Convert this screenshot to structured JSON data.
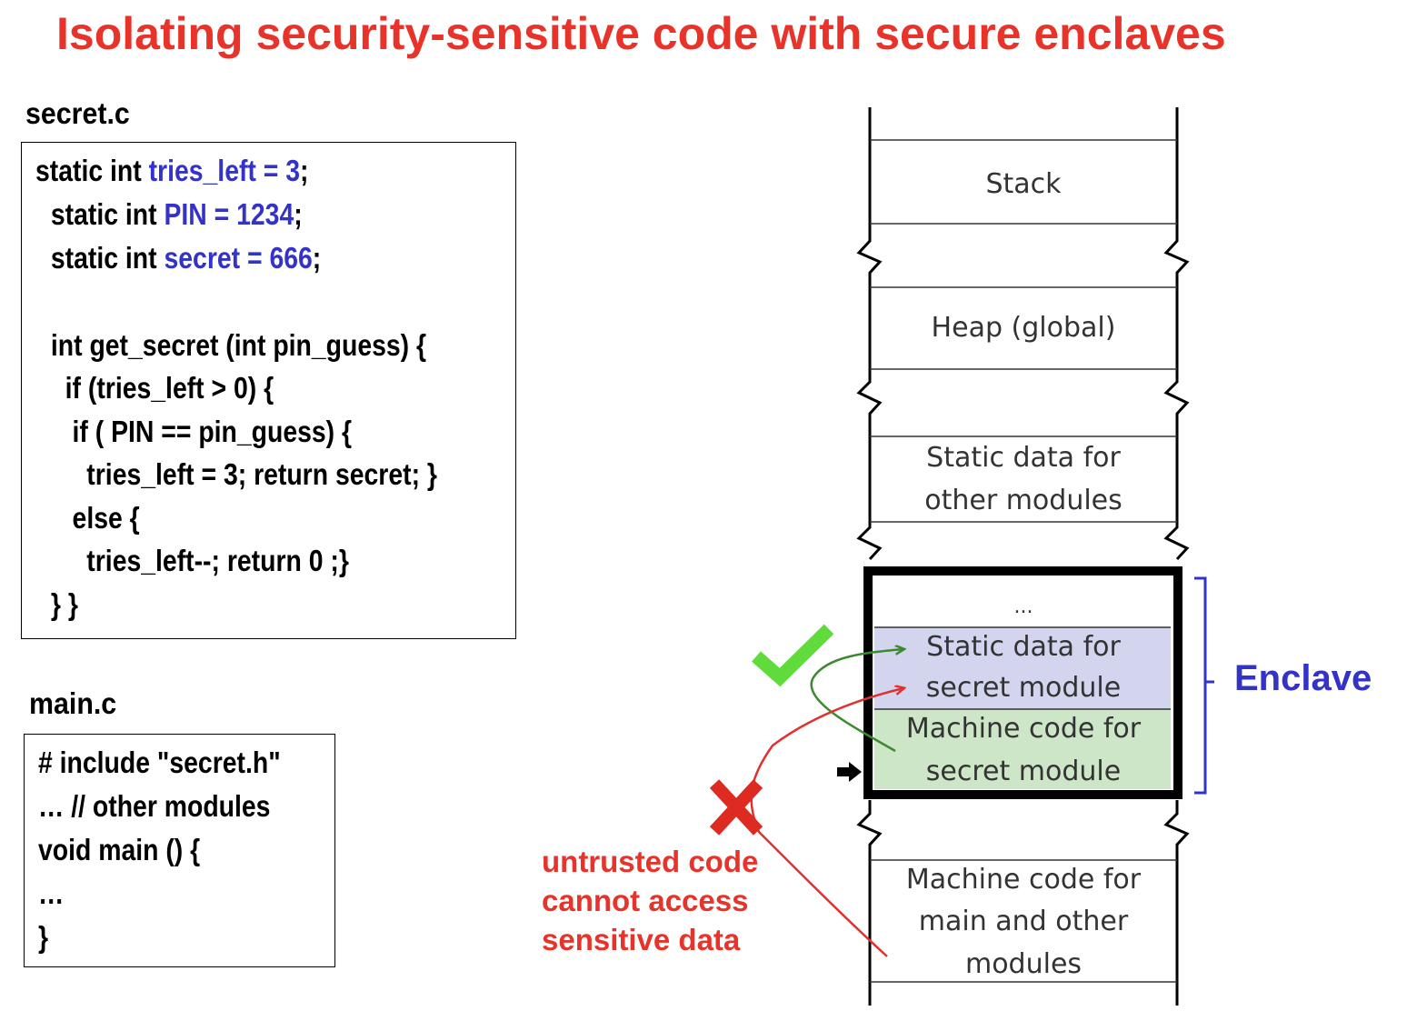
{
  "title": "Isolating security-sensitive code with secure enclaves",
  "secret_file": {
    "label": "secret.c",
    "lines": [
      {
        "pre": "static int ",
        "hl": "tries_left = 3",
        "post": ";"
      },
      {
        "pre": " static int ",
        "hl": "PIN = 1234",
        "post": ";"
      },
      {
        "pre": " static int ",
        "hl": "secret = 666",
        "post": ";"
      },
      {
        "pre": " int get_secret (int pin_guess) {",
        "hl": "",
        "post": ""
      },
      {
        "pre": "   if (tries_left > 0) {",
        "hl": "",
        "post": ""
      },
      {
        "pre": "    if ( PIN == pin_guess) {",
        "hl": "",
        "post": ""
      },
      {
        "pre": "      tries_left = 3; return secret; }",
        "hl": "",
        "post": ""
      },
      {
        "pre": "    else {",
        "hl": "",
        "post": ""
      },
      {
        "pre": "      tries_left--; return 0 ;}",
        "hl": "",
        "post": ""
      },
      {
        "pre": " } }",
        "hl": "",
        "post": ""
      }
    ]
  },
  "main_file": {
    "label": "main.c",
    "lines": [
      "# include \"secret.h\"",
      "… // other modules",
      "void main () {",
      "…",
      "}"
    ]
  },
  "memory": {
    "stack": "Stack",
    "heap": "Heap (global)",
    "static_other": [
      "Static data for",
      "other modules"
    ],
    "enclave_dots": "...",
    "static_secret": [
      "Static data for",
      "secret module"
    ],
    "machine_secret": [
      "Machine code for",
      "secret module"
    ],
    "machine_main": [
      "Machine code for",
      "main and other",
      "modules"
    ]
  },
  "enclave_label": "Enclave",
  "untrusted_note": [
    "untrusted code",
    "cannot access",
    "sensitive data"
  ],
  "colors": {
    "title": "#e8332a",
    "highlight": "#3333c7",
    "static_secret_fill": "#d3d5ef",
    "machine_secret_fill": "#cde6c8",
    "allowed_arrow": "#3a8a2e",
    "denied_arrow": "#e03030",
    "check": "#5fdc3c",
    "cross": "#dd2b22"
  }
}
